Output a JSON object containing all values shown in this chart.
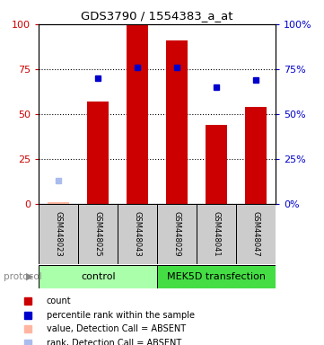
{
  "title": "GDS3790 / 1554383_a_at",
  "samples": [
    "GSM448023",
    "GSM448025",
    "GSM448043",
    "GSM448029",
    "GSM448041",
    "GSM448047"
  ],
  "bar_values": [
    1,
    57,
    100,
    91,
    44,
    54
  ],
  "bar_color": "#CC0000",
  "dot_values": [
    null,
    70,
    76,
    76,
    65,
    69
  ],
  "dot_color": "#0000CC",
  "absent_bar_value": 1,
  "absent_bar_index": 0,
  "absent_dot_value": 13,
  "absent_dot_index": 0,
  "absent_bar_color": "#FFB6A0",
  "absent_dot_color": "#AABBEE",
  "groups": [
    {
      "label": "control",
      "span": [
        0,
        3
      ],
      "color": "#AAFFAA"
    },
    {
      "label": "MEK5D transfection",
      "span": [
        3,
        6
      ],
      "color": "#44DD44"
    }
  ],
  "ylim": [
    0,
    100
  ],
  "yticks": [
    0,
    25,
    50,
    75,
    100
  ],
  "left_tick_color": "#CC0000",
  "right_tick_color": "#0000CC",
  "background_color": "#ffffff",
  "sample_box_color": "#CCCCCC",
  "bar_width": 0.55
}
